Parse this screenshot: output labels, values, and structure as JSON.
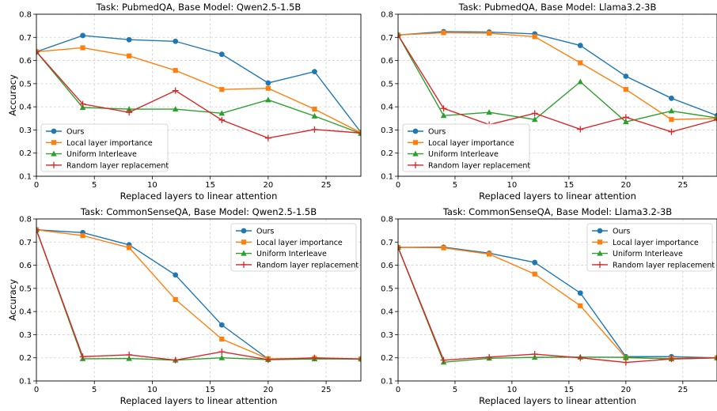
{
  "colors": {
    "Ours": "#1f77b4",
    "Local layer importance": "#ff7f0e",
    "Uniform Interleave": "#2ca02c",
    "Random layer replacement": "#d62728"
  },
  "markers": {
    "Ours": "circle",
    "Local layer importance": "square",
    "Uniform Interleave": "triangle",
    "Random layer replacement": "plus"
  },
  "chart_data": [
    {
      "type": "line",
      "title": "Task: PubmedQA, Base Model: Qwen2.5-1.5B",
      "xlabel": "Replaced layers to linear attention",
      "ylabel": "Accuracy",
      "xlim": [
        0,
        28
      ],
      "ylim": [
        0.1,
        0.8
      ],
      "x_ticks": [
        0,
        5,
        10,
        15,
        20,
        25
      ],
      "y_ticks": [
        0.1,
        0.2,
        0.3,
        0.4,
        0.5,
        0.6,
        0.7,
        0.8
      ],
      "grid": true,
      "legend_position": "lower-left",
      "x": [
        0,
        4,
        8,
        12,
        16,
        20,
        24,
        28
      ],
      "series": [
        {
          "name": "Ours",
          "values": [
            0.638,
            0.708,
            0.69,
            0.683,
            0.627,
            0.503,
            0.552,
            0.29
          ]
        },
        {
          "name": "Local layer importance",
          "values": [
            0.638,
            0.655,
            0.62,
            0.557,
            0.475,
            0.48,
            0.39,
            0.288
          ]
        },
        {
          "name": "Uniform Interleave",
          "values": [
            0.638,
            0.397,
            0.39,
            0.39,
            0.372,
            0.43,
            0.36,
            0.285
          ]
        },
        {
          "name": "Random layer replacement",
          "values": [
            0.638,
            0.412,
            0.376,
            0.47,
            0.343,
            0.265,
            0.302,
            0.287
          ]
        }
      ]
    },
    {
      "type": "line",
      "title": "Task: PubmedQA, Base Model: Llama3.2-3B",
      "xlabel": "Replaced layers to linear attention",
      "ylabel": "",
      "xlim": [
        0,
        28
      ],
      "ylim": [
        0.1,
        0.8
      ],
      "x_ticks": [
        0,
        5,
        10,
        15,
        20,
        25
      ],
      "y_ticks": [
        0.1,
        0.2,
        0.3,
        0.4,
        0.5,
        0.6,
        0.7,
        0.8
      ],
      "grid": true,
      "legend_position": "lower-left",
      "x": [
        0,
        4,
        8,
        12,
        16,
        20,
        24,
        28
      ],
      "series": [
        {
          "name": "Ours",
          "values": [
            0.71,
            0.725,
            0.723,
            0.715,
            0.665,
            0.532,
            0.437,
            0.362
          ]
        },
        {
          "name": "Local layer importance",
          "values": [
            0.71,
            0.72,
            0.718,
            0.703,
            0.59,
            0.475,
            0.345,
            0.35
          ]
        },
        {
          "name": "Uniform Interleave",
          "values": [
            0.71,
            0.362,
            0.376,
            0.345,
            0.508,
            0.335,
            0.382,
            0.352
          ]
        },
        {
          "name": "Random layer replacement",
          "values": [
            0.71,
            0.393,
            0.323,
            0.372,
            0.303,
            0.355,
            0.292,
            0.345
          ]
        }
      ]
    },
    {
      "type": "line",
      "title": "Task: CommonSenseQA, Base Model: Qwen2.5-1.5B",
      "xlabel": "Replaced layers to linear attention",
      "ylabel": "Accuracy",
      "xlim": [
        0,
        28
      ],
      "ylim": [
        0.1,
        0.8
      ],
      "x_ticks": [
        0,
        5,
        10,
        15,
        20,
        25
      ],
      "y_ticks": [
        0.1,
        0.2,
        0.3,
        0.4,
        0.5,
        0.6,
        0.7,
        0.8
      ],
      "grid": true,
      "legend_position": "upper-right",
      "x": [
        0,
        4,
        8,
        12,
        16,
        20,
        24,
        28
      ],
      "series": [
        {
          "name": "Ours",
          "values": [
            0.753,
            0.741,
            0.688,
            0.558,
            0.342,
            0.195,
            0.197,
            0.195
          ]
        },
        {
          "name": "Local layer importance",
          "values": [
            0.753,
            0.728,
            0.676,
            0.452,
            0.281,
            0.196,
            0.198,
            0.195
          ]
        },
        {
          "name": "Uniform Interleave",
          "values": [
            0.753,
            0.196,
            0.197,
            0.19,
            0.2,
            0.192,
            0.195,
            0.195
          ]
        },
        {
          "name": "Random layer replacement",
          "values": [
            0.753,
            0.205,
            0.213,
            0.19,
            0.226,
            0.192,
            0.2,
            0.195
          ]
        }
      ]
    },
    {
      "type": "line",
      "title": "Task: CommonSenseQA, Base Model: Llama3.2-3B",
      "xlabel": "Replaced layers to linear attention",
      "ylabel": "",
      "xlim": [
        0,
        28
      ],
      "ylim": [
        0.1,
        0.8
      ],
      "x_ticks": [
        0,
        5,
        10,
        15,
        20,
        25
      ],
      "y_ticks": [
        0.1,
        0.2,
        0.3,
        0.4,
        0.5,
        0.6,
        0.7,
        0.8
      ],
      "grid": true,
      "legend_position": "upper-right",
      "x": [
        0,
        4,
        8,
        12,
        16,
        20,
        24,
        28
      ],
      "series": [
        {
          "name": "Ours",
          "values": [
            0.677,
            0.678,
            0.652,
            0.612,
            0.48,
            0.205,
            0.205,
            0.2
          ]
        },
        {
          "name": "Local layer importance",
          "values": [
            0.677,
            0.675,
            0.648,
            0.562,
            0.425,
            0.2,
            0.197,
            0.2
          ]
        },
        {
          "name": "Uniform Interleave",
          "values": [
            0.677,
            0.181,
            0.198,
            0.202,
            0.203,
            0.202,
            0.195,
            0.2
          ]
        },
        {
          "name": "Random layer replacement",
          "values": [
            0.677,
            0.19,
            0.203,
            0.216,
            0.2,
            0.18,
            0.195,
            0.2
          ]
        }
      ]
    }
  ]
}
